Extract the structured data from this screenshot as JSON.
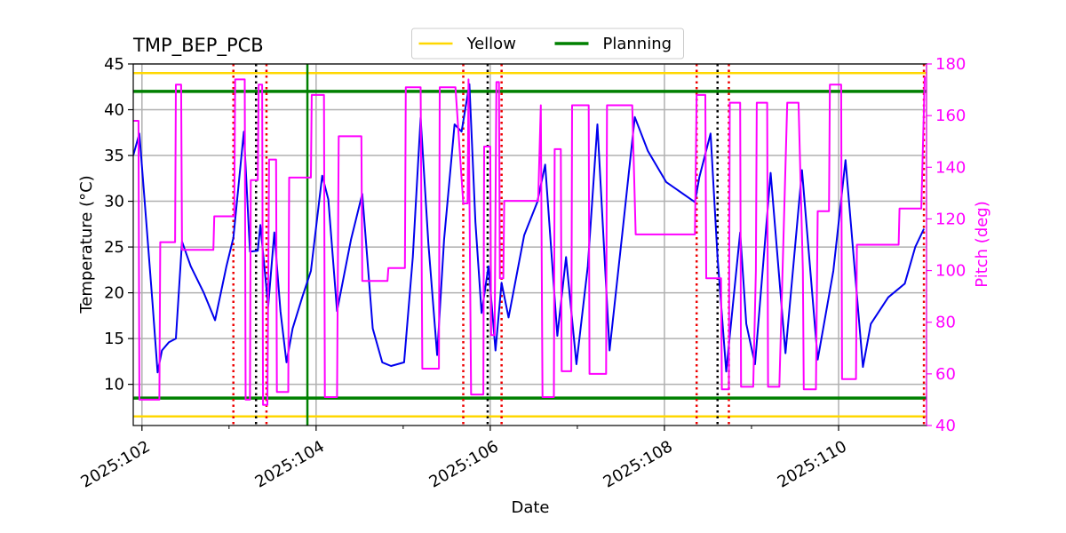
{
  "chart_data": {
    "type": "line",
    "title": "TMP_BEP_PCB",
    "xlabel": "Date",
    "ylabel": "Temperature (°C)",
    "y2label": "Pitch (deg)",
    "xlim": [
      101.9,
      111.01
    ],
    "ylim": [
      5.5,
      45
    ],
    "y2lim": [
      40,
      180
    ],
    "xticks": [
      {
        "value": 102,
        "label": "2025:102"
      },
      {
        "value": 104,
        "label": "2025:104"
      },
      {
        "value": 106,
        "label": "2025:106"
      },
      {
        "value": 108,
        "label": "2025:108"
      },
      {
        "value": 110,
        "label": "2025:110"
      }
    ],
    "xminorticks": [
      103,
      105,
      107,
      109
    ],
    "yticks": [
      10,
      15,
      20,
      25,
      30,
      35,
      40,
      45
    ],
    "y2ticks": [
      40,
      60,
      80,
      100,
      120,
      140,
      160,
      180
    ],
    "grid": true,
    "legend": "upper center",
    "series": [
      {
        "color": "#0000ee",
        "x": [
          101.9,
          101.97,
          102.05,
          102.12,
          102.18,
          102.23,
          102.31,
          102.39,
          102.46,
          102.56,
          102.71,
          102.84,
          102.97,
          103.05,
          103.17,
          103.24,
          103.33,
          103.36,
          103.45,
          103.52,
          103.59,
          103.66,
          103.73,
          103.84,
          103.94,
          104.07,
          104.14,
          104.24,
          104.4,
          104.53,
          104.65,
          104.76,
          104.86,
          105.01,
          105.11,
          105.2,
          105.29,
          105.39,
          105.47,
          105.59,
          105.67,
          105.76,
          105.83,
          105.9,
          105.98,
          106.06,
          106.13,
          106.21,
          106.39,
          106.54,
          106.63,
          106.77,
          106.87,
          106.99,
          107.12,
          107.23,
          107.37,
          107.52,
          107.66,
          107.81,
          108.02,
          108.35,
          108.4,
          108.53,
          108.61,
          108.71,
          108.87,
          108.94,
          109.04,
          109.22,
          109.39,
          109.58,
          109.76,
          109.94,
          110.08,
          110.28,
          110.37,
          110.57,
          110.76,
          110.88,
          110.98
        ],
        "values": [
          35,
          37.4,
          27.7,
          19,
          11.3,
          13.7,
          14.6,
          15,
          25.6,
          22.9,
          20,
          17,
          22.9,
          26,
          37.6,
          24.5,
          24.6,
          27.4,
          18.5,
          26.6,
          18,
          12.4,
          16.1,
          19.5,
          22.4,
          32.8,
          30.2,
          18,
          25.8,
          30.8,
          16.1,
          12.4,
          12,
          12.4,
          23.9,
          39.1,
          25.3,
          13.2,
          25.8,
          38.4,
          37.6,
          42.8,
          27.7,
          17.8,
          22.9,
          13.7,
          21.1,
          17.3,
          26.3,
          29.9,
          34,
          15.3,
          23.9,
          12.2,
          22.9,
          38.4,
          13.7,
          26.8,
          39.2,
          35.5,
          32.1,
          29.9,
          32.6,
          37.4,
          23.9,
          11.4,
          26.6,
          16.6,
          12.2,
          33.1,
          13.4,
          33.4,
          12.7,
          22.4,
          34.5,
          11.9,
          16.6,
          19.5,
          21,
          25,
          27
        ]
      },
      {
        "color": "#ff00ff",
        "axis": "y2",
        "x": [
          101.9,
          101.96,
          101.97,
          102.2,
          102.21,
          102.38,
          102.39,
          102.45,
          102.46,
          102.82,
          102.83,
          103.06,
          103.07,
          103.18,
          103.19,
          103.24,
          103.25,
          103.33,
          103.34,
          103.38,
          103.39,
          103.44,
          103.46,
          103.54,
          103.55,
          103.68,
          103.69,
          103.94,
          103.95,
          104.09,
          104.1,
          104.24,
          104.26,
          104.52,
          104.53,
          104.82,
          104.83,
          105.02,
          105.03,
          105.2,
          105.22,
          105.41,
          105.42,
          105.6,
          105.69,
          105.74,
          105.75,
          105.78,
          105.92,
          105.93,
          106.0,
          106.01,
          106.05,
          106.07,
          106.1,
          106.11,
          106.15,
          106.16,
          106.55,
          106.58,
          106.6,
          106.73,
          106.74,
          106.81,
          106.82,
          106.93,
          106.94,
          107.13,
          107.14,
          107.33,
          107.34,
          107.63,
          107.67,
          108.35,
          108.37,
          108.47,
          108.48,
          108.65,
          108.66,
          108.74,
          108.75,
          108.87,
          108.88,
          109.02,
          109.05,
          109.06,
          109.18,
          109.19,
          109.32,
          109.41,
          109.54,
          109.59,
          109.6,
          109.74,
          109.76,
          109.89,
          109.9,
          110.03,
          110.04,
          110.2,
          110.21,
          110.69,
          110.7,
          110.95,
          110.99
        ],
        "values": [
          158,
          158,
          50,
          50,
          111,
          111,
          172,
          172,
          108,
          108,
          121,
          121,
          174,
          174,
          50,
          50,
          135,
          135,
          172,
          172,
          48,
          48,
          143,
          143,
          53,
          53,
          136,
          136,
          168,
          168,
          51,
          51,
          152,
          152,
          96,
          96,
          101,
          101,
          171,
          171,
          62,
          62,
          171,
          171,
          126,
          126,
          174,
          52,
          52,
          148,
          148,
          75,
          75,
          173,
          173,
          97,
          97,
          127,
          127,
          164,
          51,
          51,
          147,
          147,
          61,
          61,
          164,
          164,
          60,
          60,
          164,
          164,
          114,
          114,
          168,
          168,
          97,
          97,
          54,
          54,
          165,
          165,
          55,
          55,
          100,
          165,
          165,
          55,
          55,
          165,
          165,
          100,
          54,
          54,
          123,
          123,
          172,
          172,
          58,
          58,
          110,
          110,
          124,
          124,
          175
        ]
      }
    ],
    "hlines": [
      {
        "name": "Yellow",
        "color": "#ffd700",
        "values": [
          44,
          6.5
        ]
      },
      {
        "name": "Planning",
        "color": "#008000",
        "values": [
          42,
          8.5
        ]
      }
    ],
    "vlines": [
      {
        "color": "#ee0000",
        "style": "dotted",
        "x": [
          103.05,
          103.43,
          105.69,
          106.13,
          108.37,
          108.74,
          110.98
        ]
      },
      {
        "color": "#000000",
        "style": "dotted",
        "x": [
          103.31,
          105.97,
          108.61
        ]
      },
      {
        "color": "#008000",
        "style": "solid",
        "x": [
          103.9
        ]
      }
    ]
  }
}
